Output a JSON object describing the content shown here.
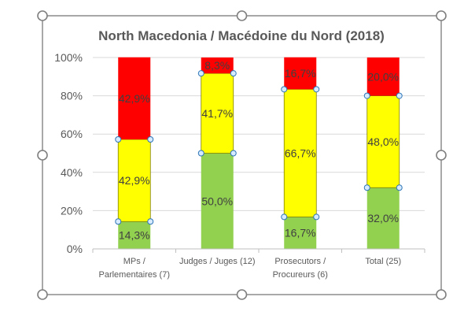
{
  "chart_data": {
    "type": "bar",
    "stacked": true,
    "percent": true,
    "title": "North Macedonia  / Macédoine du Nord (2018)",
    "categories": [
      [
        "MPs /",
        "Parlementaires (7)"
      ],
      [
        "Judges / Juges (12)"
      ],
      [
        "Prosecutors  /",
        "Procureurs (6)"
      ],
      [
        "Total (25)"
      ]
    ],
    "series": [
      {
        "color": "#92D050",
        "values": [
          14.3,
          50.0,
          16.7,
          32.0
        ],
        "labels": [
          "14,3%",
          "50,0%",
          "16,7%",
          "32,0%"
        ]
      },
      {
        "color": "#FFFF00",
        "values": [
          42.9,
          41.7,
          66.7,
          48.0
        ],
        "labels": [
          "42,9%",
          "41,7%",
          "66,7%",
          "48,0%"
        ]
      },
      {
        "color": "#FF0000",
        "values": [
          42.9,
          8.3,
          16.7,
          20.0
        ],
        "labels": [
          "42,9%",
          "8,3%",
          "16,7%",
          "20,0%"
        ]
      }
    ],
    "y_ticks": [
      "0%",
      "20%",
      "40%",
      "60%",
      "80%",
      "100%"
    ],
    "ylim": [
      0,
      100
    ],
    "grid": true,
    "legend": "none",
    "selected_series": 1
  },
  "colors": {
    "axis_text": "#595959",
    "gridline": "#D9D9D9",
    "selection_frame": "#8C8C8C",
    "handle_fill": "#D6EBFF",
    "handle_stroke": "#2E75B6"
  }
}
